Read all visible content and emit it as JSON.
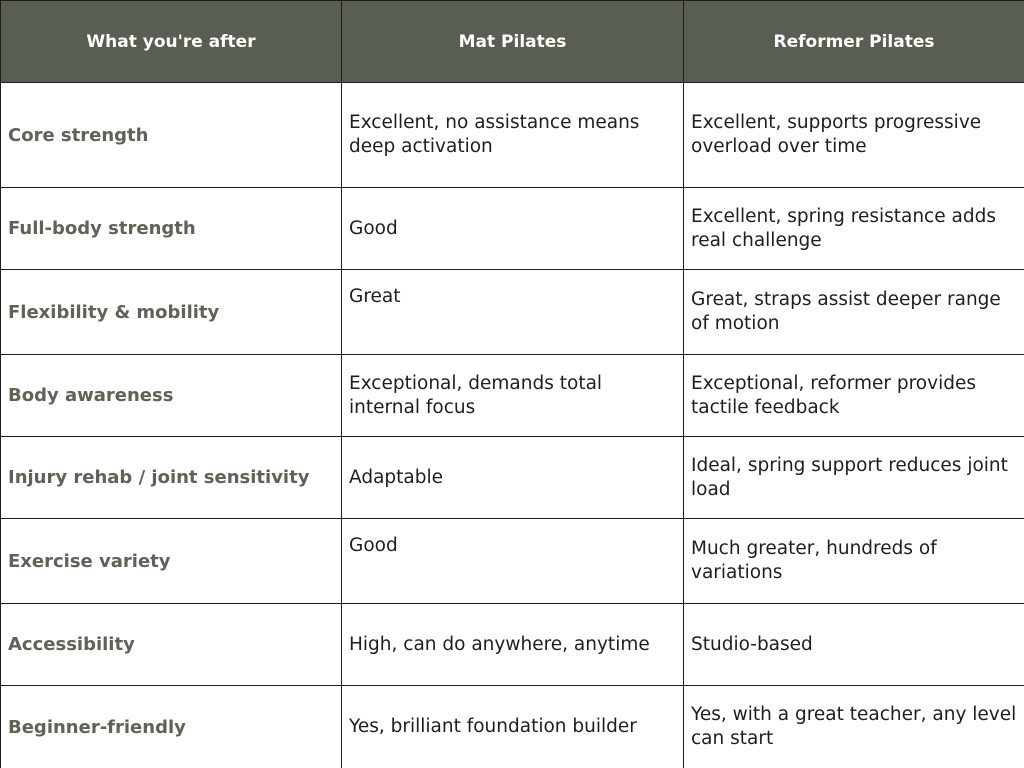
{
  "header": {
    "col1": "What you're after",
    "col2": "Mat Pilates",
    "col3": "Reformer Pilates"
  },
  "rows": [
    {
      "label": "Core strength",
      "mat": "Excellent, no assistance means deep activation",
      "reformer": "Excellent, supports progressive overload over time"
    },
    {
      "label": "Full-body strength",
      "mat": "Good",
      "reformer": "Excellent, spring resistance adds real challenge"
    },
    {
      "label": "Flexibility & mobility",
      "mat": "Great",
      "reformer": "Great, straps assist deeper range of motion"
    },
    {
      "label": "Body awareness",
      "mat": "Exceptional, demands total internal focus",
      "reformer": "Exceptional, reformer provides tactile feedback"
    },
    {
      "label": "Injury rehab / joint sensitivity",
      "mat": "Adaptable",
      "reformer": "Ideal, spring support reduces joint load"
    },
    {
      "label": "Exercise variety",
      "mat": "Good",
      "reformer": "Much greater, hundreds of variations"
    },
    {
      "label": "Accessibility",
      "mat": "High, can do anywhere, anytime",
      "reformer": "Studio-based"
    },
    {
      "label": "Beginner-friendly",
      "mat": "Yes, brilliant foundation builder",
      "reformer": "Yes, with a great teacher, any level can start"
    }
  ],
  "colors": {
    "header_bg": "#585e52",
    "header_text": "#ffffff",
    "row_label_text": "#5e6357",
    "body_text": "#1e1e1e",
    "border": "#1d1d1d"
  }
}
